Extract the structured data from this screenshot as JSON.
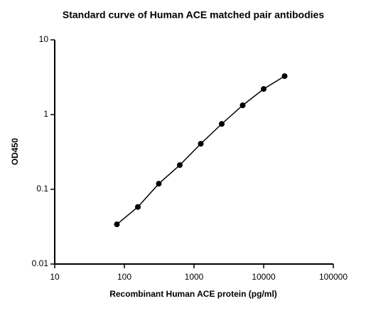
{
  "chart_data": {
    "type": "line",
    "title": "Standard curve of Human ACE matched pair antibodies",
    "x_label": "Recombinant Human ACE protein (pg/ml)",
    "y_label": "OD450",
    "x": [
      78.125,
      156.25,
      312.5,
      625,
      1250,
      2500,
      5000,
      10000,
      20000
    ],
    "series": [
      {
        "name": "Standard curve",
        "color": "#000000",
        "values": [
          0.034,
          0.058,
          0.119,
          0.211,
          0.407,
          0.75,
          1.33,
          2.2,
          3.27
        ]
      }
    ],
    "xlim": [
      10,
      100000
    ],
    "xticks": [
      10,
      100,
      1000,
      10000,
      100000
    ],
    "ylim": [
      0.01,
      10
    ],
    "yticks": [
      0.01,
      0.1,
      1,
      10
    ],
    "x_log": true,
    "y_log": true,
    "markers": true,
    "grid": false
  }
}
